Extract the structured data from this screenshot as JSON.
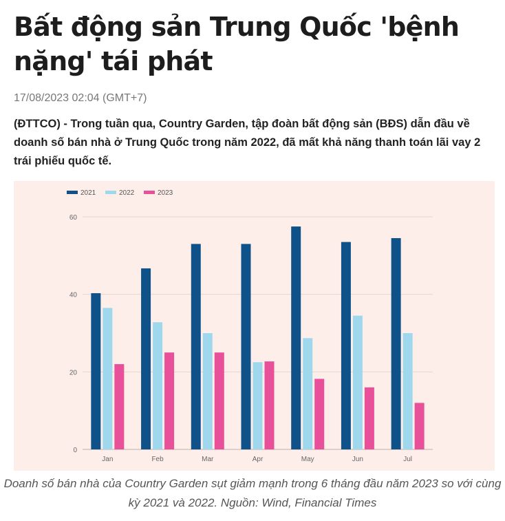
{
  "article": {
    "title": "Bất động sản Trung Quốc 'bệnh nặng' tái phát",
    "timestamp": "17/08/2023 02:04 (GMT+7)",
    "lead_source": "(ĐTTCO) -",
    "lead_text": "Trong tuần qua, Country Garden, tập đoàn bất động sản (BĐS) dẫn đầu về doanh số bán nhà ở Trung Quốc trong năm 2022, đã mất khả năng thanh toán lãi vay 2 trái phiếu quốc tế.",
    "caption": "Doanh số bán nhà của Country Garden sụt giảm mạnh trong 6 tháng đầu năm 2023 so với cùng kỳ 2021 và 2022. Nguồn: Wind, Financial Times"
  },
  "chart_data": {
    "type": "bar",
    "categories": [
      "Jan",
      "Feb",
      "Mar",
      "Apr",
      "May",
      "Jun",
      "Jul"
    ],
    "series": [
      {
        "name": "2021",
        "color": "#0e5289",
        "values": [
          40.3,
          46.7,
          53,
          53,
          57.5,
          53.5,
          54.5
        ]
      },
      {
        "name": "2022",
        "color": "#9fd8ec",
        "values": [
          36.5,
          32.8,
          30,
          22.5,
          28.7,
          34.5,
          30
        ]
      },
      {
        "name": "2023",
        "color": "#e9509a",
        "values": [
          22,
          25,
          25,
          22.7,
          18.2,
          16,
          12
        ]
      }
    ],
    "yticks": [
      0,
      20,
      40,
      60
    ],
    "ylim": [
      0,
      60
    ],
    "grid": true,
    "legend_position": "top-left",
    "background": "#fdeee9"
  }
}
